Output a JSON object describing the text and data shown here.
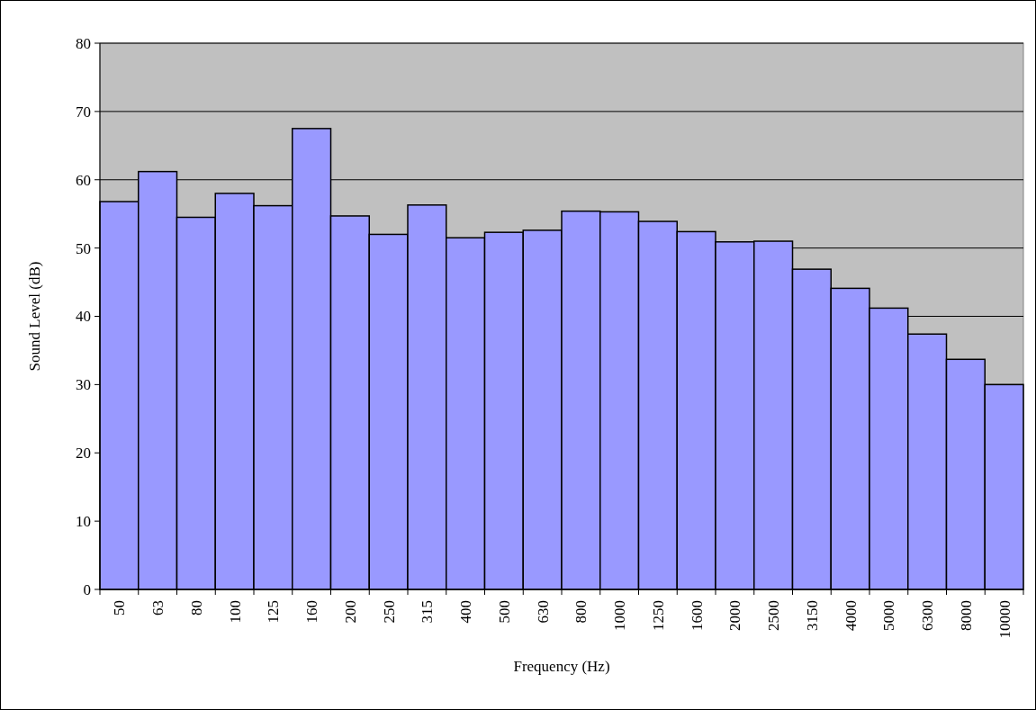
{
  "chart_data": {
    "type": "bar",
    "xlabel": "Frequency (Hz)",
    "ylabel": "Sound Level (dB)",
    "categories": [
      "50",
      "63",
      "80",
      "100",
      "125",
      "160",
      "200",
      "250",
      "315",
      "400",
      "500",
      "630",
      "800",
      "1000",
      "1250",
      "1600",
      "2000",
      "2500",
      "3150",
      "4000",
      "5000",
      "6300",
      "8000",
      "10000"
    ],
    "values": [
      56.8,
      61.2,
      54.5,
      58.0,
      56.2,
      67.5,
      54.7,
      52.0,
      56.3,
      51.5,
      52.3,
      52.6,
      55.4,
      55.3,
      53.9,
      52.4,
      50.9,
      51.0,
      46.9,
      44.1,
      41.2,
      37.4,
      33.7,
      30.0
    ],
    "color": "#9999ff",
    "ylim": [
      0,
      80
    ],
    "yticks": [
      0,
      10,
      20,
      30,
      40,
      50,
      60,
      70,
      80
    ],
    "grid": "y"
  }
}
